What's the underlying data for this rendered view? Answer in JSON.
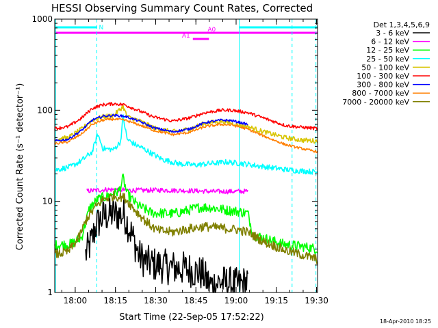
{
  "chart_data": {
    "type": "line",
    "title": "HESSI Observing Summary Count Rates, Corrected",
    "xlabel": "Start Time (22-Sep-05 17:52:22)",
    "ylabel": "Corrected Count Rate (s⁻¹ detector⁻¹)",
    "yscale": "log",
    "ylim": [
      1,
      1000
    ],
    "xlim_minutes": [
      0,
      98
    ],
    "x_ticks": [
      {
        "label": "18:00",
        "min": 7.63
      },
      {
        "label": "18:15",
        "min": 22.63
      },
      {
        "label": "18:30",
        "min": 37.63
      },
      {
        "label": "18:45",
        "min": 52.63
      },
      {
        "label": "19:00",
        "min": 67.63
      },
      {
        "label": "19:15",
        "min": 82.63
      },
      {
        "label": "19:30",
        "min": 97.63
      }
    ],
    "y_ticks": [
      {
        "label": "1",
        "value": 1
      },
      {
        "label": "10",
        "value": 10
      },
      {
        "label": "100",
        "value": 100
      },
      {
        "label": "1000",
        "value": 1000
      }
    ],
    "legend_title": "Det 1,3,4,5,6,9",
    "legend_placement": "right",
    "footer_date": "18-Apr-2010 18:25",
    "night_bars": [
      {
        "label": "N",
        "start_min": 0,
        "end_min": 15.7,
        "color": "#00ffff"
      },
      {
        "label": "",
        "start_min": 68.8,
        "end_min": 98,
        "color": "#00ffff"
      }
    ],
    "attenuator_bars": [
      {
        "label": "A0",
        "start_min": 0,
        "end_min": 98,
        "color": "#ff00ff"
      },
      {
        "label": "A1",
        "start_min": 51.5,
        "end_min": 57.5,
        "color": "#ff00ff"
      }
    ],
    "vertical_lines": [
      {
        "min": 15.7,
        "style": "dashed",
        "color": "#00ffff"
      },
      {
        "min": 68.8,
        "style": "solid",
        "color": "#00ffff"
      },
      {
        "min": 88.5,
        "style": "dashed",
        "color": "#00ffff"
      },
      {
        "min": 97.4,
        "style": "dashed",
        "color": "#00ffff"
      },
      {
        "min": 0.3,
        "style": "solid",
        "color": "#00ffff"
      }
    ],
    "series": [
      {
        "name": "3 - 6 keV",
        "color": "#000000",
        "start": 11.5,
        "end": 72,
        "noise": 0.45,
        "points": [
          [
            11.5,
            2.6
          ],
          [
            13.5,
            3.5
          ],
          [
            15.5,
            5.5
          ],
          [
            18,
            6.8
          ],
          [
            22,
            7.3
          ],
          [
            26,
            7.0
          ],
          [
            28.5,
            4.5
          ],
          [
            31.5,
            2.5
          ],
          [
            35,
            2.1
          ],
          [
            42,
            1.9
          ],
          [
            50,
            1.8
          ],
          [
            55,
            1.6
          ],
          [
            58,
            1.2
          ],
          [
            62,
            1.3
          ],
          [
            68,
            1.2
          ],
          [
            72,
            1.3
          ]
        ]
      },
      {
        "name": "6 - 12 keV",
        "color": "#ff00ff",
        "start": 12,
        "end": 72,
        "noise": 0.06,
        "points": [
          [
            12,
            13
          ],
          [
            20,
            13.5
          ],
          [
            30,
            13.2
          ],
          [
            40,
            13.3
          ],
          [
            50,
            13.1
          ],
          [
            60,
            12.8
          ],
          [
            72,
            12.9
          ]
        ]
      },
      {
        "name": "12 - 25 keV",
        "color": "#00ff00",
        "start": 0,
        "end": 98,
        "noise": 0.13,
        "points": [
          [
            0,
            3.3
          ],
          [
            6,
            3.4
          ],
          [
            10,
            4.0
          ],
          [
            13,
            8.5
          ],
          [
            16,
            10.5
          ],
          [
            20,
            11.5
          ],
          [
            24,
            13.0
          ],
          [
            25.5,
            18.0
          ],
          [
            27,
            12.0
          ],
          [
            31,
            9.0
          ],
          [
            36,
            7.5
          ],
          [
            44,
            7.3
          ],
          [
            50,
            8.0
          ],
          [
            54,
            8.6
          ],
          [
            58,
            8.6
          ],
          [
            64,
            8.0
          ],
          [
            69,
            7.7
          ],
          [
            72,
            7.4
          ],
          [
            74,
            4.3
          ],
          [
            85,
            3.4
          ],
          [
            92,
            3.2
          ],
          [
            98,
            3.0
          ]
        ]
      },
      {
        "name": "25 - 50 keV",
        "color": "#00ffff",
        "start": 0,
        "end": 98,
        "noise": 0.07,
        "points": [
          [
            0,
            22
          ],
          [
            6,
            24
          ],
          [
            10,
            28
          ],
          [
            14,
            35
          ],
          [
            16,
            55
          ],
          [
            18,
            38
          ],
          [
            22,
            37
          ],
          [
            24.5,
            45
          ],
          [
            25.5,
            85
          ],
          [
            27,
            48
          ],
          [
            30,
            42
          ],
          [
            33,
            38
          ],
          [
            40,
            29
          ],
          [
            46,
            26
          ],
          [
            52,
            25
          ],
          [
            58,
            26
          ],
          [
            64,
            27
          ],
          [
            70,
            26
          ],
          [
            78,
            24
          ],
          [
            88,
            22
          ],
          [
            98,
            21
          ]
        ]
      },
      {
        "name": "50 - 100 keV",
        "color": "#d8c400",
        "start": 0,
        "end": 98,
        "noise": 0.06,
        "points": [
          [
            0,
            48
          ],
          [
            5,
            50
          ],
          [
            10,
            62
          ],
          [
            14,
            78
          ],
          [
            18,
            85
          ],
          [
            22,
            88
          ],
          [
            25.5,
            110
          ],
          [
            27,
            85
          ],
          [
            31,
            78
          ],
          [
            37,
            64
          ],
          [
            44,
            58
          ],
          [
            50,
            62
          ],
          [
            56,
            72
          ],
          [
            62,
            76
          ],
          [
            66,
            72
          ],
          [
            72,
            66
          ],
          [
            78,
            58
          ],
          [
            86,
            50
          ],
          [
            92,
            47
          ],
          [
            98,
            46
          ]
        ]
      },
      {
        "name": "100 - 300 keV",
        "color": "#ff0000",
        "start": 0,
        "end": 98,
        "noise": 0.04,
        "points": [
          [
            0,
            63
          ],
          [
            5,
            66
          ],
          [
            10,
            82
          ],
          [
            14,
            105
          ],
          [
            18,
            115
          ],
          [
            22,
            118
          ],
          [
            26,
            115
          ],
          [
            31,
            100
          ],
          [
            37,
            84
          ],
          [
            44,
            76
          ],
          [
            50,
            82
          ],
          [
            56,
            94
          ],
          [
            62,
            100
          ],
          [
            66,
            100
          ],
          [
            72,
            94
          ],
          [
            78,
            82
          ],
          [
            86,
            68
          ],
          [
            92,
            65
          ],
          [
            98,
            63
          ]
        ]
      },
      {
        "name": "300 - 800 keV",
        "color": "#0000ff",
        "start": 0,
        "end": 72,
        "noise": 0.03,
        "points": [
          [
            0,
            46
          ],
          [
            5,
            48
          ],
          [
            10,
            60
          ],
          [
            14,
            78
          ],
          [
            18,
            86
          ],
          [
            22,
            88
          ],
          [
            26,
            86
          ],
          [
            31,
            77
          ],
          [
            37,
            64
          ],
          [
            44,
            58
          ],
          [
            50,
            62
          ],
          [
            56,
            73
          ],
          [
            62,
            78
          ],
          [
            66,
            77
          ],
          [
            72,
            70
          ]
        ]
      },
      {
        "name": "800 - 7000 keV",
        "color": "#ff7f00",
        "start": 0,
        "end": 98,
        "noise": 0.03,
        "points": [
          [
            0,
            43
          ],
          [
            5,
            45
          ],
          [
            10,
            55
          ],
          [
            14,
            70
          ],
          [
            18,
            78
          ],
          [
            22,
            80
          ],
          [
            26,
            78
          ],
          [
            31,
            70
          ],
          [
            37,
            60
          ],
          [
            44,
            54
          ],
          [
            50,
            57
          ],
          [
            56,
            66
          ],
          [
            62,
            70
          ],
          [
            66,
            69
          ],
          [
            72,
            62
          ],
          [
            78,
            52
          ],
          [
            86,
            42
          ],
          [
            92,
            38
          ],
          [
            98,
            35
          ]
        ]
      },
      {
        "name": "7000 - 20000 keV",
        "color": "#808000",
        "start": 0,
        "end": 98,
        "noise": 0.12,
        "points": [
          [
            0,
            2.6
          ],
          [
            5,
            2.8
          ],
          [
            9,
            4.0
          ],
          [
            12,
            6.5
          ],
          [
            15,
            8.5
          ],
          [
            18,
            10.5
          ],
          [
            22,
            11.5
          ],
          [
            26,
            11.0
          ],
          [
            30,
            8.0
          ],
          [
            34,
            6.0
          ],
          [
            38,
            4.8
          ],
          [
            44,
            4.6
          ],
          [
            50,
            5.0
          ],
          [
            56,
            5.3
          ],
          [
            62,
            5.1
          ],
          [
            68,
            4.9
          ],
          [
            72,
            4.6
          ],
          [
            78,
            3.6
          ],
          [
            86,
            2.9
          ],
          [
            92,
            2.6
          ],
          [
            98,
            2.3
          ]
        ]
      }
    ]
  }
}
